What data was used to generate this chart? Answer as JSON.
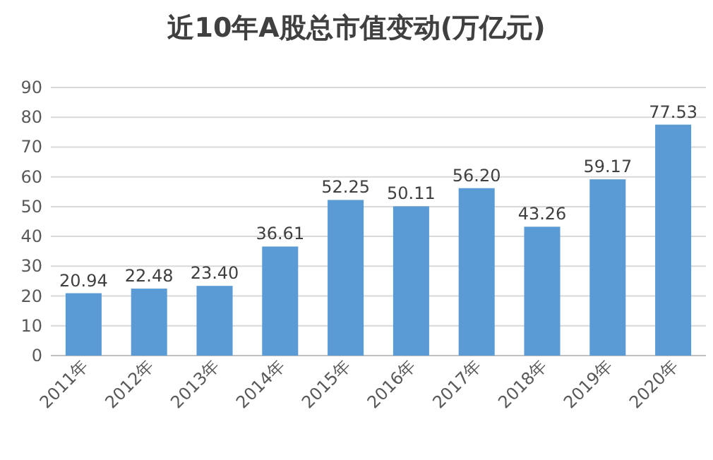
{
  "chart_data": {
    "type": "bar",
    "title": "近10年A股总市值变动(万亿元)",
    "categories": [
      "2011年",
      "2012年",
      "2013年",
      "2014年",
      "2015年",
      "2016年",
      "2017年",
      "2018年",
      "2019年",
      "2020年"
    ],
    "values": [
      20.94,
      22.48,
      23.4,
      36.61,
      52.25,
      50.11,
      56.2,
      43.26,
      59.17,
      77.53
    ],
    "value_labels": [
      "20.94",
      "22.48",
      "23.40",
      "36.61",
      "52.25",
      "50.11",
      "56.20",
      "43.26",
      "59.17",
      "77.53"
    ],
    "color": "#5b9bd5",
    "ylim": [
      0,
      90
    ],
    "yticks": [
      0,
      10,
      20,
      30,
      40,
      50,
      60,
      70,
      80,
      90
    ],
    "grid": "y"
  }
}
